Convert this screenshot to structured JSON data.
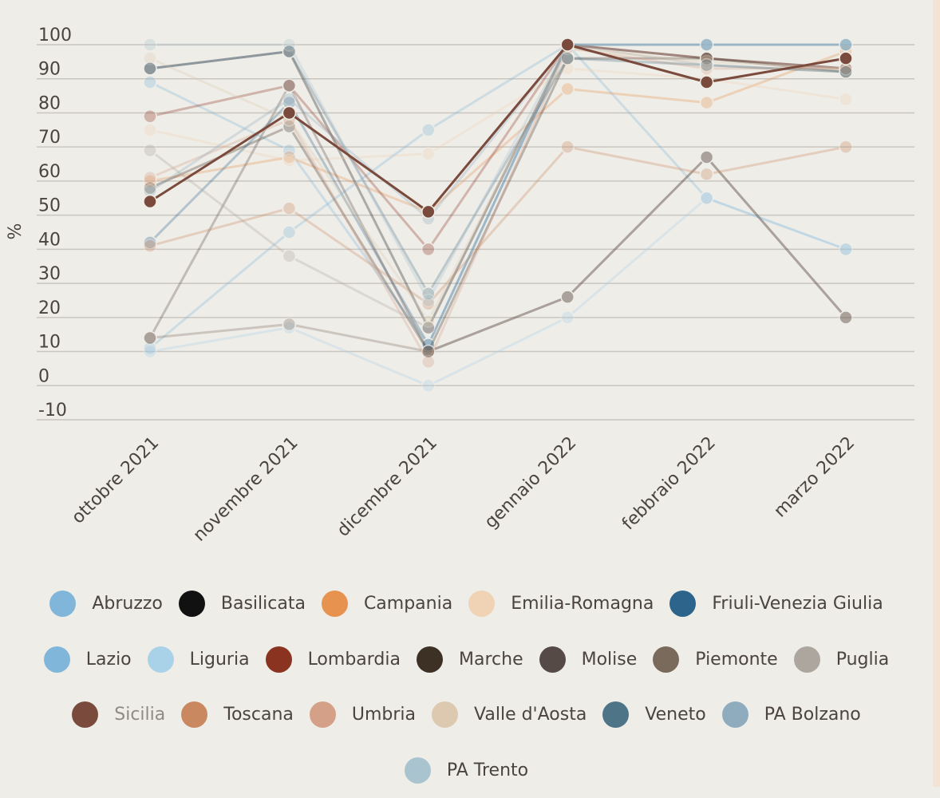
{
  "chart_data": {
    "type": "line",
    "title": "",
    "ylabel": "%",
    "xlabel": "",
    "ylim": [
      -10,
      100
    ],
    "yticks": [
      -10,
      0,
      10,
      20,
      30,
      40,
      50,
      60,
      70,
      80,
      90,
      100
    ],
    "grid": true,
    "legend_position": "bottom",
    "categories": [
      "ottobre 2021",
      "novembre 2021",
      "dicembre 2021",
      "gennaio 2022",
      "febbraio 2022",
      "marzo 2022"
    ],
    "series": [
      {
        "name": "Abruzzo",
        "color": "#7fb6d9",
        "opacity": 0.3,
        "values": [
          89,
          69,
          12,
          100,
          55,
          40
        ]
      },
      {
        "name": "Basilicata",
        "color": "#111111",
        "opacity": 0.3,
        "values": [
          93,
          98,
          17,
          100,
          96,
          93
        ]
      },
      {
        "name": "Campania",
        "color": "#e8924f",
        "opacity": 0.3,
        "values": [
          60,
          67,
          51,
          87,
          83,
          98
        ]
      },
      {
        "name": "Emilia-Romagna",
        "color": "#f0d2b4",
        "opacity": 0.3,
        "values": [
          75,
          66,
          68,
          93,
          90,
          84
        ]
      },
      {
        "name": "Friuli-Venezia Giulia",
        "color": "#2c648c",
        "opacity": 0.3,
        "values": [
          42,
          83,
          12,
          100,
          100,
          100
        ]
      },
      {
        "name": "Lazio",
        "color": "#7fb6d9",
        "opacity": 0.3,
        "values": [
          11,
          45,
          75,
          100,
          100,
          100
        ]
      },
      {
        "name": "Liguria",
        "color": "#a9d2e8",
        "opacity": 0.3,
        "values": [
          10,
          17,
          0,
          20,
          55,
          40
        ]
      },
      {
        "name": "Lombardia",
        "color": "#8a3320",
        "opacity": 0.3,
        "values": [
          79,
          88,
          40,
          100,
          96,
          93
        ]
      },
      {
        "name": "Marche",
        "color": "#3d3024",
        "opacity": 0.3,
        "values": [
          58,
          76,
          10,
          96,
          96,
          92
        ]
      },
      {
        "name": "Molise",
        "color": "#554a45",
        "opacity": 0.3,
        "values": [
          14,
          88,
          10,
          26,
          67,
          20
        ]
      },
      {
        "name": "Piemonte",
        "color": "#7a6a5c",
        "opacity": 0.3,
        "values": [
          14,
          18,
          10,
          26,
          67,
          20
        ]
      },
      {
        "name": "Puglia",
        "color": "#aca69f",
        "opacity": 0.3,
        "values": [
          69,
          38,
          17,
          100,
          94,
          92
        ]
      },
      {
        "name": "Sicilia",
        "color": "#7a4b3d",
        "opacity": 1,
        "values": [
          54,
          80,
          51,
          100,
          89,
          96
        ]
      },
      {
        "name": "Toscana",
        "color": "#c98860",
        "opacity": 0.3,
        "values": [
          41,
          52,
          24,
          70,
          62,
          70
        ]
      },
      {
        "name": "Umbria",
        "color": "#d4a088",
        "opacity": 0.3,
        "values": [
          61,
          78,
          7,
          99,
          93,
          93
        ]
      },
      {
        "name": "Valle d'Aosta",
        "color": "#dcc9b0",
        "opacity": 0.3,
        "values": [
          96,
          78,
          19,
          99,
          95,
          93
        ]
      },
      {
        "name": "Veneto",
        "color": "#4e7487",
        "opacity": 0.3,
        "values": [
          93,
          98,
          27,
          96,
          94,
          92
        ]
      },
      {
        "name": "PA Bolzano",
        "color": "#8facbf",
        "opacity": 0.3,
        "values": [
          57,
          84,
          49,
          100,
          100,
          100
        ]
      },
      {
        "name": "PA Trento",
        "color": "#a9c4cf",
        "opacity": 0.3,
        "values": [
          100,
          100,
          25,
          100,
          100,
          100
        ]
      }
    ]
  },
  "legend": {
    "rows": [
      [
        0,
        1,
        2,
        3,
        4
      ],
      [
        5,
        6,
        7,
        8,
        9,
        10,
        11
      ],
      [
        12,
        13,
        14,
        15,
        16,
        17
      ],
      [
        18
      ]
    ],
    "muted": [
      "Sicilia"
    ]
  }
}
